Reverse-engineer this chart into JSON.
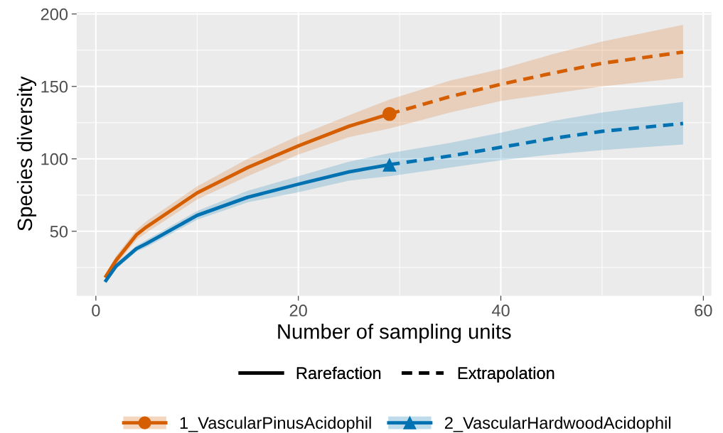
{
  "chart_data": {
    "type": "line",
    "xlabel": "Number of sampling units",
    "ylabel": "Species diversity",
    "xlim": [
      -1.9,
      60.8
    ],
    "xticks": [
      0,
      20,
      40,
      60
    ],
    "ylim": [
      5.5,
      201.3
    ],
    "yticks": [
      50,
      100,
      150,
      200
    ],
    "grid": true,
    "legend": "bottom",
    "annotations": [
      "Rarefaction",
      "Extrapolation"
    ],
    "series": [
      {
        "name": "1_VascularPinusAcidophil",
        "color": "#d55e00",
        "line_style": "solid",
        "x": [
          1,
          2,
          4,
          5,
          10,
          15,
          20,
          25,
          29
        ],
        "values": [
          19,
          30,
          47.5,
          53,
          76.5,
          94,
          109,
          122.5,
          131
        ],
        "lower": [
          17,
          27,
          44,
          49,
          72,
          88,
          103,
          115,
          121
        ],
        "upper": [
          21,
          33,
          51,
          57,
          81,
          100,
          116,
          130,
          141
        ]
      },
      {
        "color": "#d55e00",
        "line_style": "dashed",
        "x": [
          29,
          35,
          40,
          45,
          50,
          58
        ],
        "values": [
          131,
          143,
          151.5,
          159,
          166,
          173.7
        ],
        "lower": [
          121,
          132,
          140,
          145,
          150,
          156
        ],
        "upper": [
          141,
          154,
          162,
          172,
          181,
          192.5
        ]
      },
      {
        "type": "scatter",
        "color": "#d55e00",
        "marker": "circle",
        "x": [
          29
        ],
        "values": [
          131
        ]
      },
      {
        "name": "2_VascularHardwoodAcidophil",
        "color": "#0072b2",
        "line_style": "solid",
        "x": [
          1,
          2,
          4,
          5,
          10,
          15,
          20,
          25,
          29
        ],
        "values": [
          16,
          26,
          38,
          41.5,
          61,
          73.5,
          82.5,
          91,
          96
        ],
        "lower": [
          15,
          24,
          36,
          39,
          58,
          70,
          77,
          85,
          88
        ],
        "upper": [
          17,
          28,
          40,
          44,
          64,
          78,
          88,
          98,
          104
        ]
      },
      {
        "color": "#0072b2",
        "line_style": "dashed",
        "x": [
          29,
          35,
          40,
          45,
          50,
          58
        ],
        "values": [
          96,
          102,
          108,
          114,
          119,
          124.4
        ],
        "lower": [
          88,
          94,
          99,
          103,
          106,
          110
        ],
        "upper": [
          104,
          111,
          118,
          126,
          132,
          139.4
        ]
      },
      {
        "type": "scatter",
        "color": "#0072b2",
        "marker": "triangle",
        "x": [
          29
        ],
        "values": [
          96
        ]
      }
    ]
  }
}
